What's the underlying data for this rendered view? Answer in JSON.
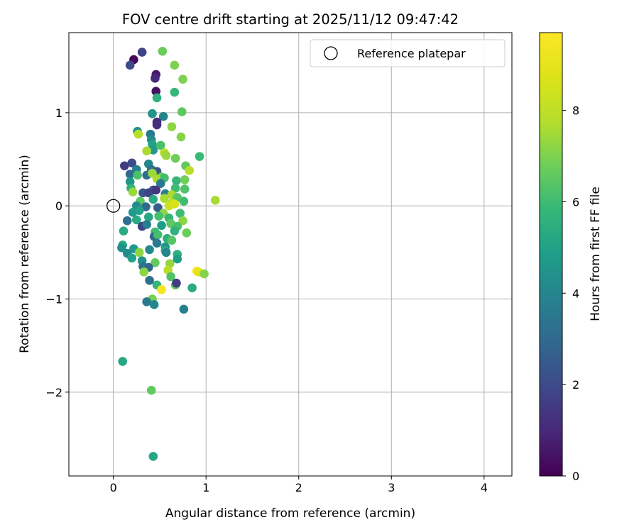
{
  "chart_data": {
    "type": "scatter",
    "title": "FOV centre drift starting at 2025/11/12 09:47:42",
    "xlabel": "Angular distance from reference (arcmin)",
    "ylabel": "Rotation from reference (arcmin)",
    "xlim": [
      -0.48,
      4.3
    ],
    "ylim": [
      -2.9,
      1.86
    ],
    "xticks": [
      0,
      1,
      2,
      3,
      4
    ],
    "xtick_labels": [
      "0",
      "1",
      "2",
      "3",
      "4"
    ],
    "yticks": [
      -2,
      -1,
      0,
      1
    ],
    "ytick_labels": [
      "−2",
      "−1",
      "0",
      "1"
    ],
    "grid": true,
    "legend": {
      "position": "top-right",
      "entries": [
        {
          "label": "Reference platepar",
          "marker": "open-circle"
        }
      ]
    },
    "reference_point": {
      "x": 0,
      "y": 0,
      "label": "Reference platepar"
    },
    "colorbar": {
      "label": "Hours from first FF file",
      "colormap": "viridis",
      "range": [
        0,
        9.7
      ],
      "ticks": [
        0,
        2,
        4,
        6,
        8
      ],
      "tick_labels": [
        "0",
        "2",
        "4",
        "6",
        "8"
      ]
    },
    "points": [
      {
        "x": 0.22,
        "y": 1.57,
        "h": 0.2
      },
      {
        "x": 0.31,
        "y": 1.65,
        "h": 1.8
      },
      {
        "x": 0.18,
        "y": 1.51,
        "h": 2.0
      },
      {
        "x": 0.46,
        "y": 1.41,
        "h": 0.6
      },
      {
        "x": 0.45,
        "y": 1.37,
        "h": 1.0
      },
      {
        "x": 0.46,
        "y": 1.23,
        "h": 0.4
      },
      {
        "x": 0.53,
        "y": 1.66,
        "h": 6.7
      },
      {
        "x": 0.66,
        "y": 1.51,
        "h": 7.0
      },
      {
        "x": 0.75,
        "y": 1.36,
        "h": 7.0
      },
      {
        "x": 0.66,
        "y": 1.22,
        "h": 5.8
      },
      {
        "x": 0.47,
        "y": 1.16,
        "h": 5.6
      },
      {
        "x": 0.74,
        "y": 1.01,
        "h": 6.5
      },
      {
        "x": 0.42,
        "y": 0.99,
        "h": 4.5
      },
      {
        "x": 0.54,
        "y": 0.96,
        "h": 4.0
      },
      {
        "x": 0.47,
        "y": 0.9,
        "h": 1.0
      },
      {
        "x": 0.47,
        "y": 0.87,
        "h": 1.2
      },
      {
        "x": 0.63,
        "y": 0.85,
        "h": 7.2
      },
      {
        "x": 0.26,
        "y": 0.8,
        "h": 4.4
      },
      {
        "x": 0.27,
        "y": 0.77,
        "h": 7.8
      },
      {
        "x": 0.4,
        "y": 0.77,
        "h": 3.5
      },
      {
        "x": 0.41,
        "y": 0.71,
        "h": 4.2
      },
      {
        "x": 0.73,
        "y": 0.74,
        "h": 7.1
      },
      {
        "x": 0.42,
        "y": 0.66,
        "h": 5.0
      },
      {
        "x": 0.51,
        "y": 0.65,
        "h": 6.2
      },
      {
        "x": 0.43,
        "y": 0.6,
        "h": 4.7
      },
      {
        "x": 0.36,
        "y": 0.59,
        "h": 7.6
      },
      {
        "x": 0.55,
        "y": 0.57,
        "h": 7.8
      },
      {
        "x": 0.57,
        "y": 0.54,
        "h": 7.4
      },
      {
        "x": 0.67,
        "y": 0.51,
        "h": 6.8
      },
      {
        "x": 0.93,
        "y": 0.53,
        "h": 5.9
      },
      {
        "x": 0.12,
        "y": 0.43,
        "h": 1.6
      },
      {
        "x": 0.2,
        "y": 0.46,
        "h": 2.0
      },
      {
        "x": 0.38,
        "y": 0.45,
        "h": 4.0
      },
      {
        "x": 0.78,
        "y": 0.43,
        "h": 6.6
      },
      {
        "x": 0.25,
        "y": 0.39,
        "h": 3.8
      },
      {
        "x": 0.41,
        "y": 0.39,
        "h": 3.3
      },
      {
        "x": 0.47,
        "y": 0.37,
        "h": 2.3
      },
      {
        "x": 0.82,
        "y": 0.38,
        "h": 7.8
      },
      {
        "x": 0.18,
        "y": 0.34,
        "h": 3.0
      },
      {
        "x": 0.26,
        "y": 0.33,
        "h": 6.2
      },
      {
        "x": 0.36,
        "y": 0.33,
        "h": 3.1
      },
      {
        "x": 0.42,
        "y": 0.35,
        "h": 7.4
      },
      {
        "x": 0.52,
        "y": 0.31,
        "h": 6.6
      },
      {
        "x": 0.18,
        "y": 0.26,
        "h": 4.6
      },
      {
        "x": 0.47,
        "y": 0.29,
        "h": 7.6
      },
      {
        "x": 0.55,
        "y": 0.3,
        "h": 6.1
      },
      {
        "x": 0.68,
        "y": 0.27,
        "h": 5.8
      },
      {
        "x": 0.77,
        "y": 0.28,
        "h": 6.8
      },
      {
        "x": 0.19,
        "y": 0.19,
        "h": 5.6
      },
      {
        "x": 0.43,
        "y": 0.17,
        "h": 2.4
      },
      {
        "x": 0.51,
        "y": 0.24,
        "h": 3.6
      },
      {
        "x": 0.67,
        "y": 0.19,
        "h": 6.0
      },
      {
        "x": 0.77,
        "y": 0.18,
        "h": 6.3
      },
      {
        "x": 0.21,
        "y": 0.15,
        "h": 7.4
      },
      {
        "x": 0.32,
        "y": 0.14,
        "h": 2.4
      },
      {
        "x": 0.38,
        "y": 0.14,
        "h": 1.8
      },
      {
        "x": 0.46,
        "y": 0.17,
        "h": 1.4
      },
      {
        "x": 0.56,
        "y": 0.13,
        "h": 3.8
      },
      {
        "x": 0.63,
        "y": 0.12,
        "h": 7.6
      },
      {
        "x": 0.55,
        "y": 0.08,
        "h": 7.6
      },
      {
        "x": 0.29,
        "y": 0.05,
        "h": 6.5
      },
      {
        "x": 0.43,
        "y": 0.07,
        "h": 5.4
      },
      {
        "x": 0.69,
        "y": 0.09,
        "h": 6.4
      },
      {
        "x": 0.63,
        "y": 0.03,
        "h": 7.8
      },
      {
        "x": 0.76,
        "y": 0.05,
        "h": 6.0
      },
      {
        "x": 1.1,
        "y": 0.06,
        "h": 7.6
      },
      {
        "x": 0.25,
        "y": 0.0,
        "h": 4.2
      },
      {
        "x": 0.35,
        "y": -0.01,
        "h": 3.0
      },
      {
        "x": 0.48,
        "y": -0.02,
        "h": 2.6
      },
      {
        "x": 0.6,
        "y": 0.0,
        "h": 8.3
      },
      {
        "x": 0.66,
        "y": 0.02,
        "h": 8.6
      },
      {
        "x": 0.21,
        "y": -0.07,
        "h": 4.7
      },
      {
        "x": 0.28,
        "y": -0.05,
        "h": 5.0
      },
      {
        "x": 0.54,
        "y": -0.08,
        "h": 7.2
      },
      {
        "x": 0.72,
        "y": -0.08,
        "h": 6.0
      },
      {
        "x": 0.15,
        "y": -0.16,
        "h": 3.2
      },
      {
        "x": 0.25,
        "y": -0.15,
        "h": 5.3
      },
      {
        "x": 0.38,
        "y": -0.12,
        "h": 5.2
      },
      {
        "x": 0.49,
        "y": -0.11,
        "h": 6.1
      },
      {
        "x": 0.6,
        "y": -0.13,
        "h": 5.8
      },
      {
        "x": 0.75,
        "y": -0.16,
        "h": 7.2
      },
      {
        "x": 0.31,
        "y": -0.22,
        "h": 1.8
      },
      {
        "x": 0.36,
        "y": -0.2,
        "h": 3.7
      },
      {
        "x": 0.52,
        "y": -0.21,
        "h": 4.8
      },
      {
        "x": 0.62,
        "y": -0.19,
        "h": 6.5
      },
      {
        "x": 0.69,
        "y": -0.22,
        "h": 6.2
      },
      {
        "x": 0.11,
        "y": -0.27,
        "h": 5.3
      },
      {
        "x": 0.45,
        "y": -0.28,
        "h": 6.0
      },
      {
        "x": 0.66,
        "y": -0.27,
        "h": 5.6
      },
      {
        "x": 0.79,
        "y": -0.29,
        "h": 6.7
      },
      {
        "x": 0.44,
        "y": -0.33,
        "h": 3.0
      },
      {
        "x": 0.48,
        "y": -0.31,
        "h": 6.1
      },
      {
        "x": 0.58,
        "y": -0.35,
        "h": 5.5
      },
      {
        "x": 0.63,
        "y": -0.37,
        "h": 6.4
      },
      {
        "x": 0.1,
        "y": -0.42,
        "h": 5.4
      },
      {
        "x": 0.47,
        "y": -0.4,
        "h": 3.6
      },
      {
        "x": 0.56,
        "y": -0.44,
        "h": 4.5
      },
      {
        "x": 0.09,
        "y": -0.45,
        "h": 4.4
      },
      {
        "x": 0.22,
        "y": -0.46,
        "h": 4.7
      },
      {
        "x": 0.39,
        "y": -0.47,
        "h": 4.2
      },
      {
        "x": 0.56,
        "y": -0.48,
        "h": 5.4
      },
      {
        "x": 0.15,
        "y": -0.51,
        "h": 4.2
      },
      {
        "x": 0.28,
        "y": -0.5,
        "h": 7.2
      },
      {
        "x": 0.57,
        "y": -0.5,
        "h": 4.0
      },
      {
        "x": 0.69,
        "y": -0.52,
        "h": 5.6
      },
      {
        "x": 0.2,
        "y": -0.56,
        "h": 5.0
      },
      {
        "x": 0.31,
        "y": -0.59,
        "h": 4.4
      },
      {
        "x": 0.45,
        "y": -0.61,
        "h": 6.6
      },
      {
        "x": 0.61,
        "y": -0.62,
        "h": 7.3
      },
      {
        "x": 0.69,
        "y": -0.57,
        "h": 4.8
      },
      {
        "x": 0.32,
        "y": -0.65,
        "h": 3.4
      },
      {
        "x": 0.38,
        "y": -0.66,
        "h": 2.9
      },
      {
        "x": 0.59,
        "y": -0.69,
        "h": 7.8
      },
      {
        "x": 0.9,
        "y": -0.7,
        "h": 9.6
      },
      {
        "x": 0.92,
        "y": -0.71,
        "h": 8.9
      },
      {
        "x": 0.98,
        "y": -0.73,
        "h": 7.1
      },
      {
        "x": 0.33,
        "y": -0.71,
        "h": 7.2
      },
      {
        "x": 0.62,
        "y": -0.76,
        "h": 6.3
      },
      {
        "x": 0.39,
        "y": -0.8,
        "h": 3.2
      },
      {
        "x": 0.47,
        "y": -0.85,
        "h": 5.8
      },
      {
        "x": 0.67,
        "y": -0.85,
        "h": 6.5
      },
      {
        "x": 0.68,
        "y": -0.83,
        "h": 1.5
      },
      {
        "x": 0.85,
        "y": -0.88,
        "h": 5.4
      },
      {
        "x": 0.52,
        "y": -0.9,
        "h": 9.5
      },
      {
        "x": 0.42,
        "y": -1.0,
        "h": 6.9
      },
      {
        "x": 0.36,
        "y": -1.03,
        "h": 3.6
      },
      {
        "x": 0.44,
        "y": -1.06,
        "h": 4.0
      },
      {
        "x": 0.76,
        "y": -1.11,
        "h": 3.8
      },
      {
        "x": 0.1,
        "y": -1.67,
        "h": 5.2
      },
      {
        "x": 0.41,
        "y": -1.98,
        "h": 6.6
      },
      {
        "x": 0.43,
        "y": -2.69,
        "h": 5.2
      }
    ]
  }
}
